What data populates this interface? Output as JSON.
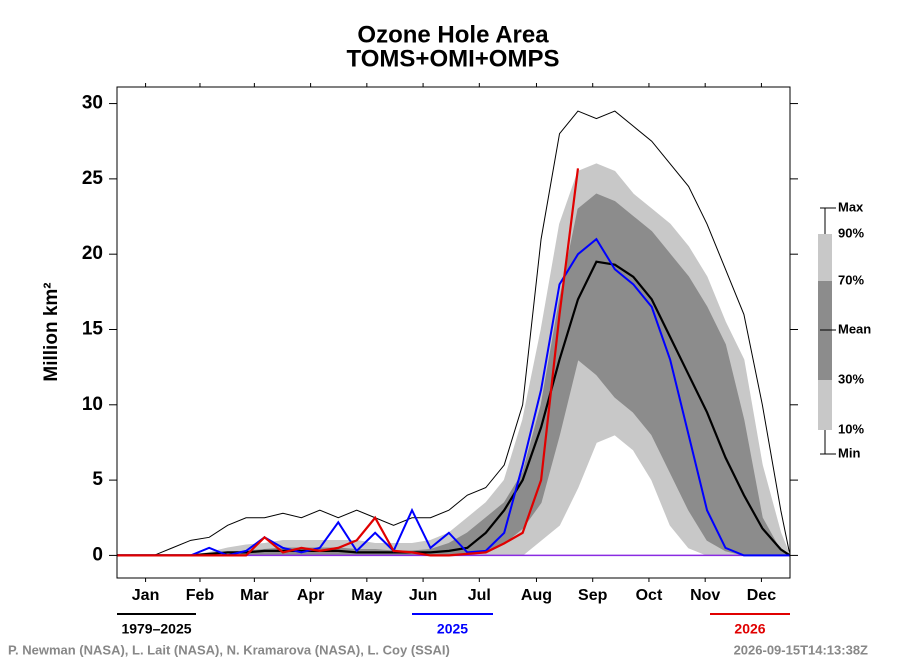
{
  "chart_data": {
    "type": "line",
    "title": "Ozone Hole Area",
    "subtitle": "TOMS+OMI+OMPS",
    "ylabel": "Million km²",
    "x": [
      0,
      10,
      20,
      30,
      40,
      50,
      60,
      70,
      80,
      90,
      100,
      110,
      120,
      130,
      140,
      150,
      160,
      170,
      180,
      190,
      200,
      210,
      220,
      230,
      240,
      250,
      260,
      270,
      280,
      290,
      300,
      310,
      320,
      330,
      340,
      350,
      360,
      365
    ],
    "xlim": [
      0,
      365
    ],
    "xticks": [
      {
        "value": 15.5,
        "label": "Jan"
      },
      {
        "value": 45,
        "label": "Feb"
      },
      {
        "value": 74.5,
        "label": "Mar"
      },
      {
        "value": 105,
        "label": "Apr"
      },
      {
        "value": 135.5,
        "label": "May"
      },
      {
        "value": 166,
        "label": "Jun"
      },
      {
        "value": 196.5,
        "label": "Jul"
      },
      {
        "value": 227.5,
        "label": "Aug"
      },
      {
        "value": 258,
        "label": "Sep"
      },
      {
        "value": 288.5,
        "label": "Oct"
      },
      {
        "value": 319,
        "label": "Nov"
      },
      {
        "value": 349.5,
        "label": "Dec"
      }
    ],
    "ylim": [
      -1.5,
      31.1
    ],
    "yticks": [
      0,
      5,
      10,
      15,
      20,
      25,
      30
    ],
    "climatology_label": "1979–2025",
    "series": [
      {
        "name": "Max",
        "color": "#000000",
        "values": [
          0,
          0,
          0,
          0.5,
          1,
          1.2,
          2,
          2.5,
          2.5,
          2.8,
          2.5,
          3,
          2.5,
          3,
          2.5,
          2,
          2.5,
          2.5,
          3,
          4,
          4.5,
          6,
          10,
          21,
          28,
          29.5,
          29,
          29.5,
          28.5,
          27.5,
          26,
          24.5,
          22,
          19,
          16,
          10,
          3,
          0
        ]
      },
      {
        "name": "90%",
        "color": "#c8c8c8",
        "values": [
          0,
          0,
          0,
          0,
          0,
          0.2,
          0.5,
          0.7,
          0.8,
          1,
          1,
          1,
          1,
          1,
          0.8,
          0.8,
          0.8,
          1,
          1.5,
          2.5,
          3.5,
          5,
          9,
          15,
          22,
          25.5,
          26,
          25.5,
          24,
          23,
          22,
          20.5,
          18.5,
          15.5,
          13,
          6,
          1.5,
          0
        ]
      },
      {
        "name": "70%",
        "color": "#8c8c8c",
        "values": [
          0,
          0,
          0,
          0,
          0,
          0,
          0.2,
          0.3,
          0.4,
          0.5,
          0.5,
          0.5,
          0.5,
          0.4,
          0.4,
          0.3,
          0.3,
          0.4,
          0.8,
          1.5,
          2.5,
          3.5,
          5.5,
          10,
          17,
          23,
          24,
          23.5,
          22.5,
          21.5,
          20,
          18.5,
          16.5,
          14,
          9,
          2.5,
          0.3,
          0
        ]
      },
      {
        "name": "Mean",
        "color": "#000000",
        "values": [
          0,
          0,
          0,
          0,
          0,
          0.1,
          0.2,
          0.2,
          0.3,
          0.3,
          0.3,
          0.3,
          0.3,
          0.2,
          0.2,
          0.2,
          0.2,
          0.2,
          0.3,
          0.5,
          1.5,
          3,
          5,
          8.5,
          13,
          17,
          19.5,
          19.3,
          18.5,
          17,
          14.5,
          12,
          9.5,
          6.5,
          4,
          1.8,
          0.4,
          0
        ]
      },
      {
        "name": "30%",
        "color": "#8c8c8c",
        "values": [
          0,
          0,
          0,
          0,
          0,
          0,
          0,
          0,
          0,
          0,
          0,
          0,
          0,
          0,
          0,
          0,
          0,
          0,
          0,
          0,
          0.3,
          0.8,
          1.8,
          3.5,
          8,
          13,
          12,
          10.5,
          9.5,
          8,
          5.5,
          3,
          1,
          0.3,
          0,
          0,
          0,
          0
        ]
      },
      {
        "name": "10%",
        "color": "#c8c8c8",
        "values": [
          0,
          0,
          0,
          0,
          0,
          0,
          0,
          0,
          0,
          0,
          0,
          0,
          0,
          0,
          0,
          0,
          0,
          0,
          0,
          0,
          0,
          0,
          0,
          1,
          2,
          4.5,
          7.5,
          8,
          7,
          5,
          2,
          0.5,
          0,
          0,
          0,
          0,
          0,
          0
        ]
      },
      {
        "name": "Min",
        "color": "#8a2be2",
        "values": [
          0,
          0,
          0,
          0,
          0,
          0,
          0,
          0,
          0,
          0,
          0,
          0,
          0,
          0,
          0,
          0,
          0,
          0,
          0,
          0,
          0,
          0,
          0,
          0,
          0,
          0,
          0,
          0,
          0,
          0,
          0,
          0,
          0,
          0,
          0,
          0,
          0,
          0
        ]
      },
      {
        "name": "2025",
        "color": "#0000ff",
        "values": [
          0,
          0,
          0,
          0,
          0,
          0.5,
          0,
          0.3,
          1.2,
          0.5,
          0.2,
          0.5,
          2.2,
          0.3,
          1.5,
          0.3,
          3,
          0.5,
          1.5,
          0.2,
          0.3,
          1.5,
          6,
          11,
          18,
          20,
          21,
          19,
          18,
          16.5,
          13,
          8,
          3,
          0.5,
          0,
          0,
          0,
          0
        ]
      },
      {
        "name": "2026",
        "color": "#e00000",
        "values": [
          0,
          0,
          0,
          0,
          0,
          0,
          0,
          0,
          1.2,
          0.2,
          0.5,
          0.3,
          0.5,
          1,
          2.5,
          0.3,
          0.2,
          0,
          0,
          0.1,
          0.2,
          0.8,
          1.5,
          5,
          16,
          25.7,
          null,
          null,
          null,
          null,
          null,
          null,
          null,
          null,
          null,
          null,
          null,
          null
        ]
      }
    ],
    "footer_left": "P. Newman (NASA), L. Lait (NASA), N. Kramarova (NASA), L. Coy (SSAI)",
    "footer_right": "2026-09-15T14:13:38Z"
  }
}
